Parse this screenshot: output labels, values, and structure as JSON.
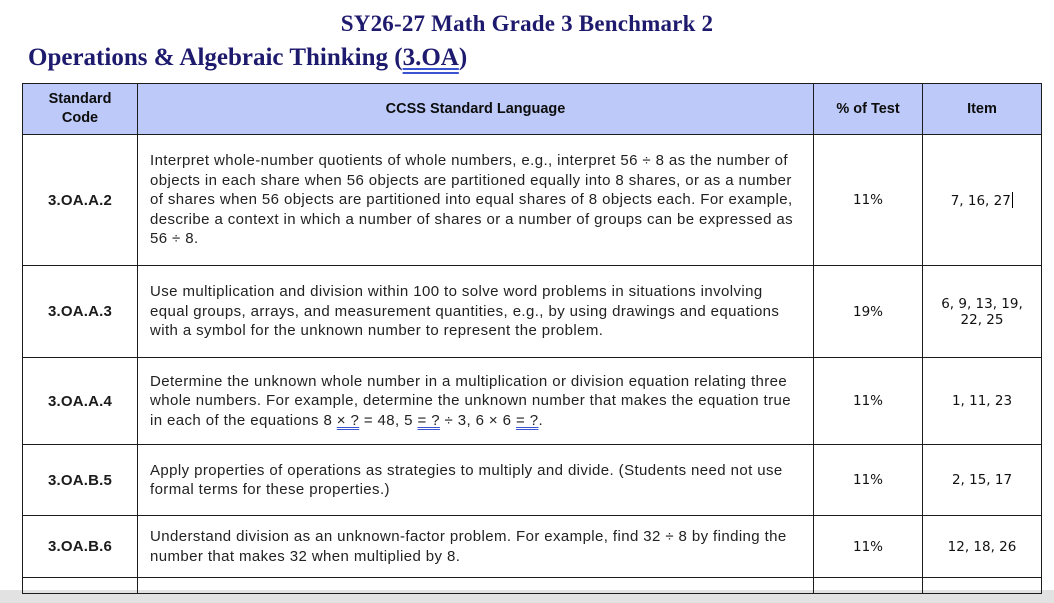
{
  "page": {
    "title": "SY26-27 Math Grade 3 Benchmark 2",
    "subtitle_prefix": "Operations & Algebraic Thinking (",
    "subtitle_link": "3.OA",
    "subtitle_suffix": ")"
  },
  "colors": {
    "heading_navy": "#1e1a6d",
    "header_row_bg": "#bdc9f8",
    "suggestion_underline_blue": "#3a53d0",
    "table_border": "#1c1c1c"
  },
  "table": {
    "headers": [
      "Standard Code",
      "CCSS Standard Language",
      "% of Test",
      "Item"
    ],
    "rows": [
      {
        "code": "3.OA.A.2",
        "language": "Interpret whole-number quotients of whole numbers, e.g., interpret 56 ÷ 8 as the number of objects in each share when 56 objects are partitioned equally into 8 shares, or as a number of shares when 56 objects are partitioned into equal shares of 8 objects each. For example, describe a context in which a number of shares or a number of groups can be expressed as 56 ÷ 8.",
        "pct": "11%",
        "items": "7, 16, 27",
        "caret": true
      },
      {
        "code": "3.OA.A.3",
        "language": "Use multiplication and division within 100 to solve word problems in situations involving equal groups, arrays, and measurement quantities, e.g., by using drawings and equations with a symbol for the unknown number to represent the problem.",
        "pct": "19%",
        "items": "6, 9, 13, 19, 22, 25"
      },
      {
        "code": "3.OA.A.4",
        "language_segments": [
          {
            "text": "Determine the unknown whole number in a multiplication or division equation relating three whole numbers. For example, determine the unknown number that makes the equation true in each of the equations 8 "
          },
          {
            "text": "× ?",
            "underline": true
          },
          {
            "text": " = 48, 5 "
          },
          {
            "text": "= ?",
            "underline": true
          },
          {
            "text": " ÷ 3, 6 × 6 "
          },
          {
            "text": "= ?",
            "underline": true
          },
          {
            "text": "."
          }
        ],
        "pct": "11%",
        "items": "1, 11, 23"
      },
      {
        "code": "3.OA.B.5",
        "language": "Apply properties of operations as strategies to multiply and divide. (Students need not use formal terms for these properties.)",
        "pct": "11%",
        "items": "2, 15, 17"
      },
      {
        "code": "3.OA.B.6",
        "language": "Understand division as an unknown-factor problem. For example, find 32 ÷ 8 by finding the number that makes 32 when multiplied by 8.",
        "pct": "11%",
        "items": "12, 18, 26"
      }
    ]
  }
}
